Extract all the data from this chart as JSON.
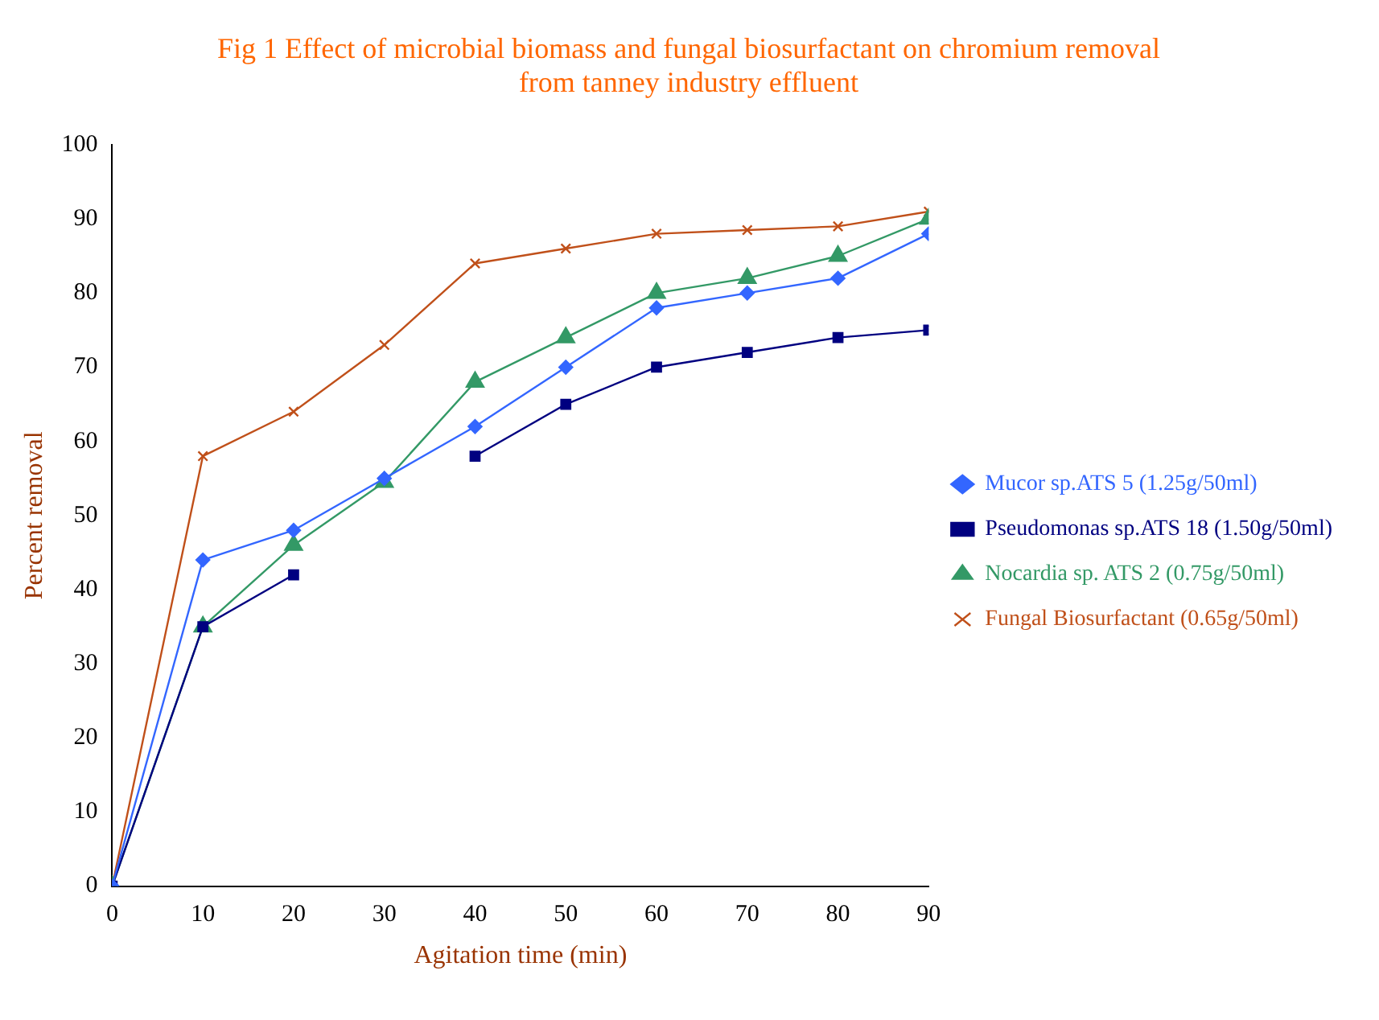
{
  "chart_data": {
    "type": "line",
    "title": "Fig 1 Effect of microbial biomass and fungal biosurfactant on chromium removal from tanney industry effluent",
    "xlabel": "Agitation time (min)",
    "ylabel": "Percent removal",
    "x": [
      0,
      10,
      20,
      30,
      40,
      50,
      60,
      70,
      80,
      90
    ],
    "series": [
      {
        "name": "Mucor sp.ATS 5 (1.25g/50ml)",
        "color": "#3366ff",
        "marker": "diamond",
        "values": [
          0,
          44,
          48,
          55,
          62,
          70,
          78,
          80,
          82,
          88
        ]
      },
      {
        "name": "Pseudomonas sp.ATS 18 (1.50g/50ml)",
        "color": "#000080",
        "marker": "square",
        "values": [
          0,
          35,
          42,
          null,
          58,
          65,
          70,
          72,
          74,
          75
        ]
      },
      {
        "name": "Nocardia sp. ATS 2 (0.75g/50ml)",
        "color": "#339966",
        "marker": "triangle",
        "values": [
          0,
          35,
          46,
          54.5,
          68,
          74,
          80,
          82,
          85,
          90
        ]
      },
      {
        "name": "Fungal Biosurfactant (0.65g/50ml)",
        "color": "#c0501a",
        "marker": "cross",
        "values": [
          0,
          58,
          64,
          73,
          84,
          86,
          88,
          88.5,
          89,
          91
        ]
      }
    ],
    "xlim": [
      0,
      90
    ],
    "xticks": [
      0,
      10,
      20,
      30,
      40,
      50,
      60,
      70,
      80,
      90
    ],
    "ylim": [
      0,
      100
    ],
    "yticks": [
      0,
      10,
      20,
      30,
      40,
      50,
      60,
      70,
      80,
      90,
      100
    ],
    "grid": false,
    "legend": "right"
  }
}
